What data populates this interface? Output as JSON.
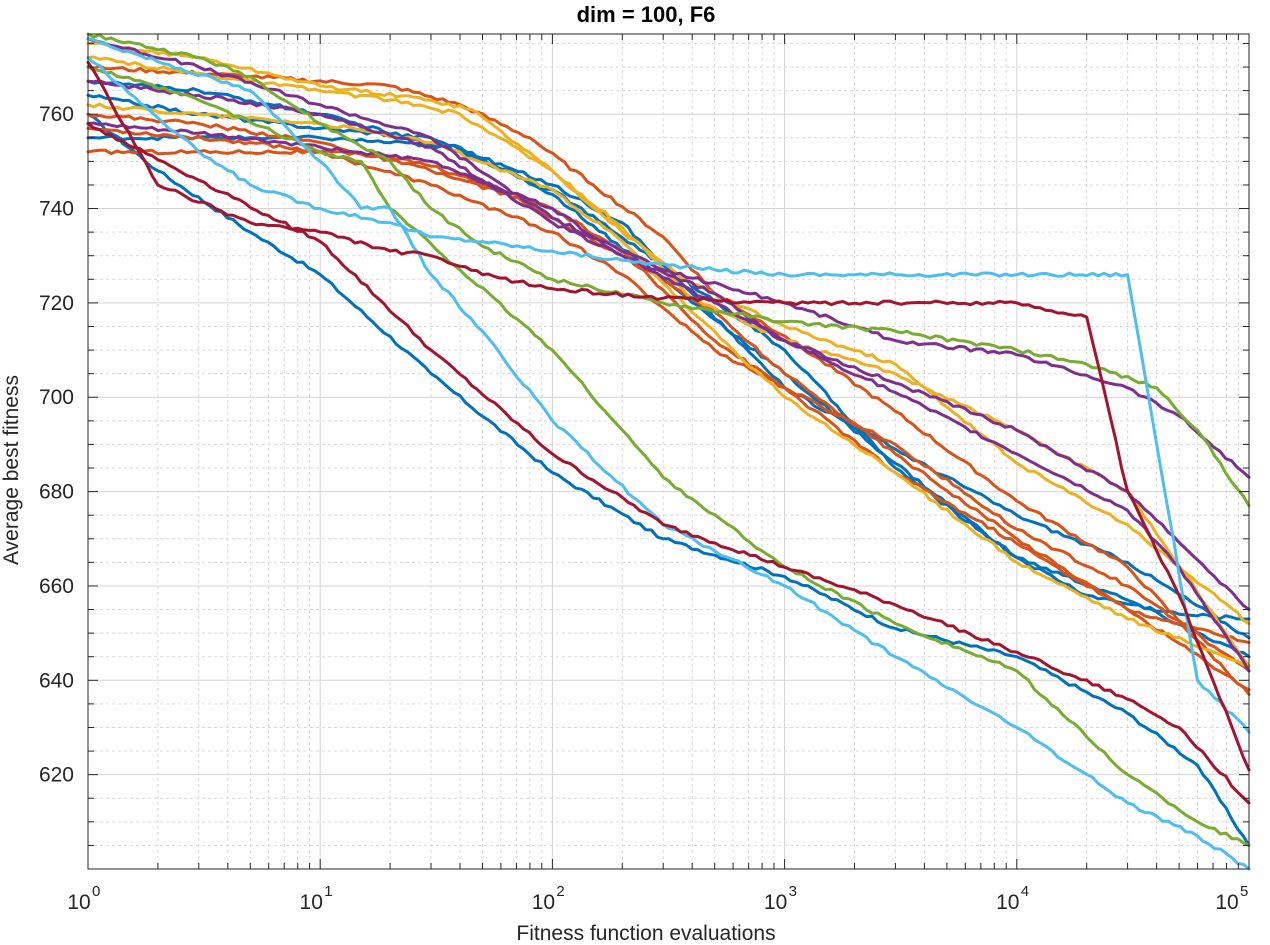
{
  "chart_data": {
    "type": "line",
    "title": "dim = 100,  F6",
    "xlabel": "Fitness function evaluations",
    "ylabel": "Average best fitness",
    "xscale": "log",
    "xlim": [
      1,
      100000
    ],
    "ylim": [
      600,
      777
    ],
    "grid": true,
    "x_ticks": [
      {
        "base": "10",
        "exp": "0",
        "value": 1
      },
      {
        "base": "10",
        "exp": "1",
        "value": 10
      },
      {
        "base": "10",
        "exp": "2",
        "value": 100
      },
      {
        "base": "10",
        "exp": "3",
        "value": 1000
      },
      {
        "base": "10",
        "exp": "4",
        "value": 10000
      },
      {
        "base": "10",
        "exp": "5",
        "value": 100000
      }
    ],
    "y_ticks": [
      {
        "label": "620",
        "value": 620
      },
      {
        "label": "640",
        "value": 640
      },
      {
        "label": "660",
        "value": 660
      },
      {
        "label": "680",
        "value": 680
      },
      {
        "label": "700",
        "value": 700
      },
      {
        "label": "720",
        "value": 720
      },
      {
        "label": "740",
        "value": 740
      },
      {
        "label": "760",
        "value": 760
      }
    ],
    "series": [
      {
        "name": "blue-1",
        "color": "#0072BD",
        "x": [
          1,
          2,
          5,
          10,
          30,
          100,
          300,
          1000,
          3000,
          10000,
          30000,
          60000,
          100000
        ],
        "y": [
          760,
          748,
          735,
          726,
          705,
          684,
          670,
          662,
          651,
          645,
          633,
          622,
          605
        ]
      },
      {
        "name": "blue-2",
        "color": "#0072BD",
        "x": [
          1,
          3,
          10,
          40,
          100,
          300,
          1000,
          3000,
          10000,
          20000,
          50000,
          100000
        ],
        "y": [
          767,
          765,
          760,
          752,
          744,
          728,
          710,
          685,
          666,
          658,
          654,
          653
        ]
      },
      {
        "name": "blue-3",
        "color": "#0072BD",
        "x": [
          1,
          3,
          10,
          30,
          100,
          200,
          300,
          1000,
          3000,
          10000,
          30000,
          100000
        ],
        "y": [
          764,
          760,
          757,
          755,
          745,
          737,
          728,
          702,
          689,
          675,
          665,
          649
        ]
      },
      {
        "name": "blue-4",
        "color": "#0072BD",
        "x": [
          1,
          10,
          40,
          100,
          300,
          1000,
          3000,
          10000,
          30000,
          100000
        ],
        "y": [
          755,
          755,
          753,
          743,
          725,
          705,
          686,
          666,
          657,
          645
        ]
      },
      {
        "name": "orange-1",
        "color": "#D95319",
        "x": [
          1,
          10,
          20,
          30,
          60,
          100,
          200,
          500,
          1000,
          3000,
          10000,
          30000,
          100000
        ],
        "y": [
          752,
          752,
          751,
          749,
          744,
          738,
          730,
          718,
          705,
          688,
          670,
          655,
          648
        ]
      },
      {
        "name": "orange-2",
        "color": "#D95319",
        "x": [
          1,
          3,
          10,
          30,
          100,
          200,
          500,
          1000,
          3000,
          10000,
          30000,
          100000
        ],
        "y": [
          760,
          758,
          754,
          748,
          740,
          731,
          712,
          702,
          684,
          669,
          655,
          638
        ]
      },
      {
        "name": "orange-3",
        "color": "#D95319",
        "x": [
          1,
          5,
          20,
          40,
          80,
          150,
          300,
          500,
          1000,
          3000,
          10000,
          30000,
          100000
        ],
        "y": [
          770,
          768,
          766,
          762,
          755,
          745,
          734,
          722,
          713,
          697,
          678,
          664,
          637
        ]
      },
      {
        "name": "orange-4",
        "color": "#D95319",
        "x": [
          1,
          5,
          10,
          30,
          100,
          200,
          500,
          1000,
          3000,
          10000,
          30000,
          100000
        ],
        "y": [
          757,
          754,
          752,
          745,
          735,
          726,
          710,
          702,
          690,
          672,
          660,
          642
        ]
      },
      {
        "name": "yellow-1",
        "color": "#EDB120",
        "x": [
          1,
          3,
          10,
          30,
          45,
          100,
          200,
          400,
          1000,
          3000,
          10000,
          30000,
          100000
        ],
        "y": [
          775,
          772,
          766,
          763,
          761,
          748,
          736,
          721,
          712,
          705,
          693,
          680,
          643
        ]
      },
      {
        "name": "yellow-2",
        "color": "#EDB120",
        "x": [
          1,
          5,
          20,
          40,
          100,
          200,
          400,
          1000,
          3000,
          10000,
          30000,
          100000
        ],
        "y": [
          772,
          767,
          763,
          760,
          748,
          735,
          724,
          715,
          707,
          686,
          673,
          652
        ]
      },
      {
        "name": "yellow-3",
        "color": "#EDB120",
        "x": [
          1,
          3,
          10,
          30,
          100,
          200,
          400,
          1000,
          3000,
          10000,
          30000,
          100000
        ],
        "y": [
          762,
          760,
          758,
          754,
          744,
          733,
          718,
          700,
          684,
          665,
          653,
          643
        ]
      },
      {
        "name": "purple-1",
        "color": "#7E2F8E",
        "x": [
          1,
          3,
          10,
          30,
          100,
          300,
          1000,
          3000,
          10000,
          30000,
          50000,
          100000
        ],
        "y": [
          776,
          770,
          762,
          755,
          738,
          727,
          720,
          712,
          709,
          702,
          696,
          683
        ]
      },
      {
        "name": "purple-2",
        "color": "#7E2F8E",
        "x": [
          1,
          3,
          10,
          30,
          50,
          100,
          200,
          500,
          1000,
          3000,
          10000,
          30000,
          100000
        ],
        "y": [
          767,
          764,
          760,
          753,
          746,
          737,
          730,
          722,
          712,
          703,
          693,
          680,
          655
        ]
      },
      {
        "name": "purple-3",
        "color": "#7E2F8E",
        "x": [
          1,
          3,
          10,
          30,
          100,
          200,
          500,
          1000,
          3000,
          10000,
          30000,
          50000,
          100000
        ],
        "y": [
          758,
          756,
          753,
          750,
          740,
          730,
          720,
          712,
          701,
          688,
          676,
          664,
          642
        ]
      },
      {
        "name": "green-1",
        "color": "#77AC30",
        "x": [
          1,
          3,
          5,
          10,
          20,
          30,
          50,
          100,
          300,
          1000,
          3000,
          10000,
          20000,
          40000,
          60000,
          100000
        ],
        "y": [
          777,
          772,
          768,
          758,
          750,
          740,
          732,
          725,
          720,
          716,
          714,
          710,
          707,
          702,
          693,
          677
        ]
      },
      {
        "name": "green-2",
        "color": "#77AC30",
        "x": [
          1,
          3,
          10,
          15,
          20,
          40,
          100,
          300,
          1000,
          3000,
          10000,
          20000,
          30000,
          60000,
          100000
        ],
        "y": [
          770,
          763,
          752,
          750,
          740,
          727,
          710,
          683,
          664,
          652,
          642,
          628,
          620,
          610,
          605
        ]
      },
      {
        "name": "cyan-1",
        "color": "#4DBEEE",
        "x": [
          1,
          3,
          5,
          10,
          20,
          30,
          50,
          100,
          200,
          500,
          1000,
          3000,
          10000,
          30000,
          60000,
          100000
        ],
        "y": [
          772,
          752,
          745,
          740,
          737,
          734,
          733,
          731,
          729,
          727,
          726,
          726,
          726,
          726,
          640,
          629
        ]
      },
      {
        "name": "cyan-2",
        "color": "#4DBEEE",
        "x": [
          1,
          5,
          10,
          15,
          20,
          30,
          50,
          100,
          300,
          1000,
          3000,
          10000,
          30000,
          60000,
          100000
        ],
        "y": [
          776,
          765,
          750,
          740,
          740,
          726,
          714,
          695,
          673,
          660,
          645,
          630,
          614,
          607,
          600
        ]
      },
      {
        "name": "red-1",
        "color": "#A2142F",
        "x": [
          1,
          2,
          5,
          10,
          20,
          30,
          50,
          100,
          300,
          1000,
          3000,
          10000,
          20000,
          30000,
          50000,
          100000
        ],
        "y": [
          771,
          745,
          737,
          735,
          731,
          730,
          726,
          723,
          721,
          720,
          720,
          720,
          717,
          680,
          658,
          621
        ]
      },
      {
        "name": "red-2",
        "color": "#A2142F",
        "x": [
          1,
          3,
          10,
          30,
          100,
          300,
          1000,
          3000,
          10000,
          30000,
          50000,
          100000
        ],
        "y": [
          758,
          746,
          733,
          710,
          688,
          673,
          664,
          656,
          646,
          636,
          630,
          614
        ]
      }
    ]
  }
}
